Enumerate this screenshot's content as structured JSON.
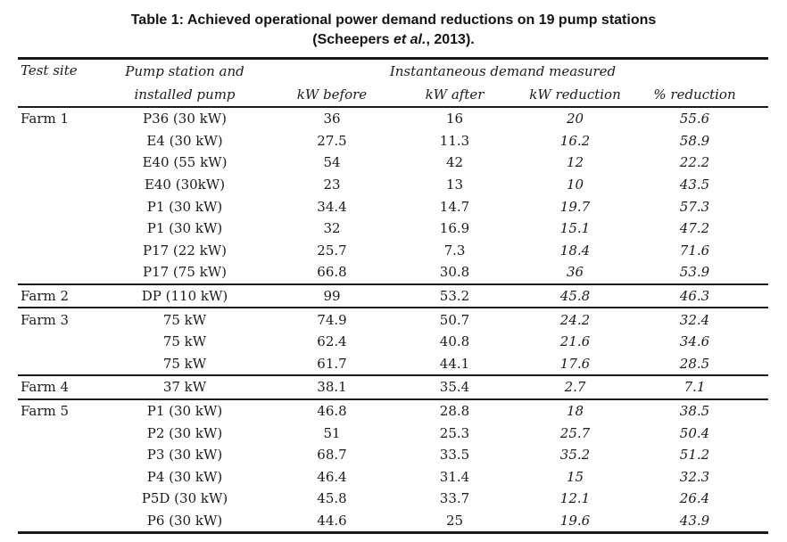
{
  "title": {
    "line1": "Table 1: Achieved operational power demand reductions on 19 pump stations",
    "line2_pre": "(Scheepers ",
    "line2_etal": "et al.",
    "line2_post": ", 2013)."
  },
  "table": {
    "header": {
      "col_test_site": "Test site",
      "col_pump_line1": "Pump station and",
      "col_pump_line2": "installed pump",
      "group_header": "Instantaneous demand measured",
      "col_kw_before": "kW before",
      "col_kw_after": "kW after",
      "col_kw_reduction": "kW reduction",
      "col_pct_reduction": "% reduction"
    },
    "groups": [
      {
        "farm": "Farm 1",
        "rows": [
          {
            "pump": "P36 (30 kW)",
            "kw_before": "36",
            "kw_after": "16",
            "kw_reduction": "20",
            "pct_reduction": "55.6"
          },
          {
            "pump": "E4 (30 kW)",
            "kw_before": "27.5",
            "kw_after": "11.3",
            "kw_reduction": "16.2",
            "pct_reduction": "58.9"
          },
          {
            "pump": "E40 (55 kW)",
            "kw_before": "54",
            "kw_after": "42",
            "kw_reduction": "12",
            "pct_reduction": "22.2"
          },
          {
            "pump": "E40 (30kW)",
            "kw_before": "23",
            "kw_after": "13",
            "kw_reduction": "10",
            "pct_reduction": "43.5"
          },
          {
            "pump": "P1 (30 kW)",
            "kw_before": "34.4",
            "kw_after": "14.7",
            "kw_reduction": "19.7",
            "pct_reduction": "57.3"
          },
          {
            "pump": "P1 (30 kW)",
            "kw_before": "32",
            "kw_after": "16.9",
            "kw_reduction": "15.1",
            "pct_reduction": "47.2"
          },
          {
            "pump": "P17 (22 kW)",
            "kw_before": "25.7",
            "kw_after": "7.3",
            "kw_reduction": "18.4",
            "pct_reduction": "71.6"
          },
          {
            "pump": "P17 (75 kW)",
            "kw_before": "66.8",
            "kw_after": "30.8",
            "kw_reduction": "36",
            "pct_reduction": "53.9"
          }
        ]
      },
      {
        "farm": "Farm 2",
        "rows": [
          {
            "pump": "DP (110 kW)",
            "kw_before": "99",
            "kw_after": "53.2",
            "kw_reduction": "45.8",
            "pct_reduction": "46.3"
          }
        ]
      },
      {
        "farm": "Farm 3",
        "rows": [
          {
            "pump": "75 kW",
            "kw_before": "74.9",
            "kw_after": "50.7",
            "kw_reduction": "24.2",
            "pct_reduction": "32.4"
          },
          {
            "pump": "75 kW",
            "kw_before": "62.4",
            "kw_after": "40.8",
            "kw_reduction": "21.6",
            "pct_reduction": "34.6"
          },
          {
            "pump": "75 kW",
            "kw_before": "61.7",
            "kw_after": "44.1",
            "kw_reduction": "17.6",
            "pct_reduction": "28.5"
          }
        ]
      },
      {
        "farm": "Farm 4",
        "rows": [
          {
            "pump": "37 kW",
            "kw_before": "38.1",
            "kw_after": "35.4",
            "kw_reduction": "2.7",
            "pct_reduction": "7.1"
          }
        ]
      },
      {
        "farm": "Farm 5",
        "rows": [
          {
            "pump": "P1 (30 kW)",
            "kw_before": "46.8",
            "kw_after": "28.8",
            "kw_reduction": "18",
            "pct_reduction": "38.5"
          },
          {
            "pump": "P2 (30 kW)",
            "kw_before": "51",
            "kw_after": "25.3",
            "kw_reduction": "25.7",
            "pct_reduction": "50.4"
          },
          {
            "pump": "P3 (30 kW)",
            "kw_before": "68.7",
            "kw_after": "33.5",
            "kw_reduction": "35.2",
            "pct_reduction": "51.2"
          },
          {
            "pump": "P4 (30 kW)",
            "kw_before": "46.4",
            "kw_after": "31.4",
            "kw_reduction": "15",
            "pct_reduction": "32.3"
          },
          {
            "pump": "P5D (30 kW)",
            "kw_before": "45.8",
            "kw_after": "33.7",
            "kw_reduction": "12.1",
            "pct_reduction": "26.4"
          },
          {
            "pump": "P6 (30 kW)",
            "kw_before": "44.6",
            "kw_after": "25",
            "kw_reduction": "19.6",
            "pct_reduction": "43.9"
          }
        ]
      }
    ]
  },
  "colors": {
    "text": "#1b1b1b",
    "rule": "#1a1a1a",
    "background": "#ffffff"
  }
}
